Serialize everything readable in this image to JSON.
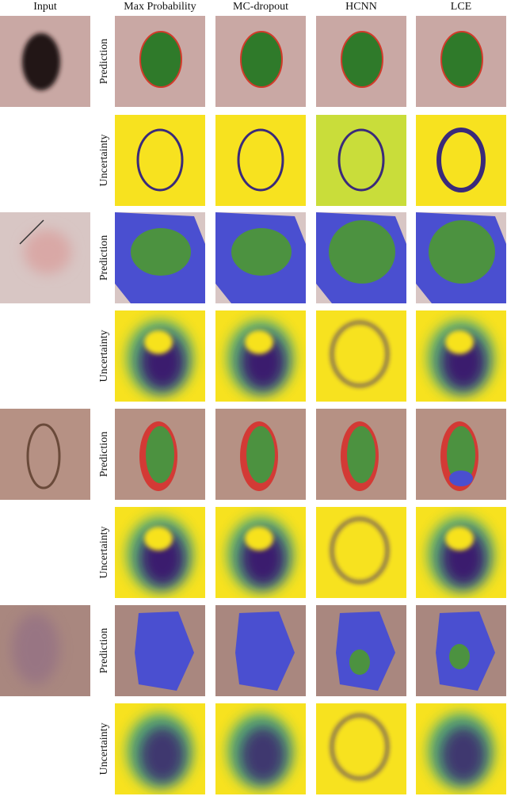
{
  "header": {
    "columns": [
      "Input",
      "Max Probability",
      "MC-dropout",
      "HCNN",
      "LCE"
    ]
  },
  "rows": [
    {
      "label": "Prediction"
    },
    {
      "label": "Uncertainty"
    },
    {
      "label": "Prediction"
    },
    {
      "label": "Uncertainty"
    },
    {
      "label": "Prediction"
    },
    {
      "label": "Uncertainty"
    },
    {
      "label": "Prediction"
    },
    {
      "label": "Uncertainty"
    }
  ]
}
